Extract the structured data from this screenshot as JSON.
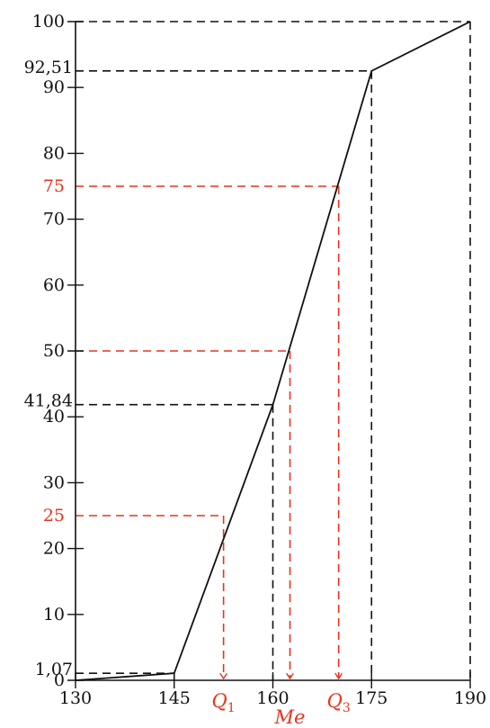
{
  "colors": {
    "black": "#111111",
    "red": "#e8331c"
  },
  "chart_data": {
    "type": "line",
    "title": "",
    "xlabel": "",
    "ylabel": "",
    "x_ticks": [
      130,
      145,
      160,
      175,
      190
    ],
    "y_ticks": [
      0,
      10,
      20,
      30,
      40,
      50,
      60,
      70,
      80,
      90,
      100
    ],
    "xlim": [
      130,
      190
    ],
    "ylim": [
      0,
      100
    ],
    "grid": false,
    "series": [
      {
        "points": [
          [
            130,
            0
          ],
          [
            145,
            1.07
          ],
          [
            160,
            41.84
          ],
          [
            175,
            92.51
          ],
          [
            190,
            100
          ]
        ]
      }
    ],
    "black_guides": [
      {
        "x": 145,
        "y": 1.07,
        "label": "1,07"
      },
      {
        "x": 160,
        "y": 41.84,
        "label": "41,84"
      },
      {
        "x": 175,
        "y": 92.51,
        "label": "92,51"
      },
      {
        "x": 190,
        "y": 100,
        "label": ""
      }
    ],
    "quantiles": [
      {
        "name": "Q",
        "sub": "1",
        "y": 25,
        "y_label": "25",
        "x": 152.5
      },
      {
        "name": "Me",
        "sub": "",
        "y": 50,
        "y_label": "",
        "x": 162.6
      },
      {
        "name": "Q",
        "sub": "3",
        "y": 75,
        "y_label": "75",
        "x": 170.0
      }
    ]
  }
}
